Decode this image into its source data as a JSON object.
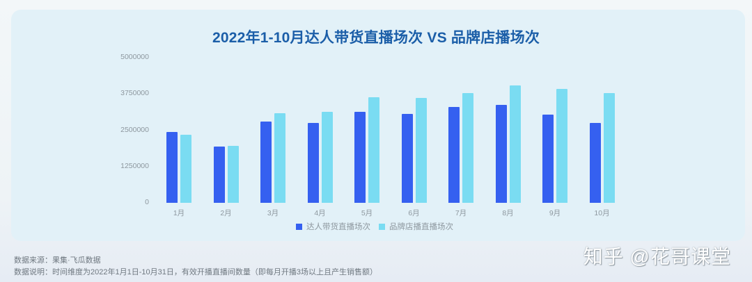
{
  "chart_data": {
    "type": "bar",
    "title": "2022年1-10月达人带货直播场次 VS 品牌店播场次",
    "xlabel": "",
    "ylabel": "",
    "ylim": [
      0,
      5000000
    ],
    "yticks": [
      "5000000",
      "3750000",
      "2500000",
      "1250000",
      "0"
    ],
    "categories": [
      "1月",
      "2月",
      "3月",
      "4月",
      "5月",
      "6月",
      "7月",
      "8月",
      "9月",
      "10月"
    ],
    "series": [
      {
        "name": "达人带货直播场次",
        "color": "#3560f0",
        "values": [
          2440000,
          1940000,
          2800000,
          2750000,
          3130000,
          3060000,
          3300000,
          3370000,
          3040000,
          2750000
        ]
      },
      {
        "name": "品牌店播直播场次",
        "color": "#7adcf2",
        "values": [
          2340000,
          1960000,
          3090000,
          3130000,
          3640000,
          3610000,
          3780000,
          4040000,
          3920000,
          3780000
        ]
      }
    ],
    "grid": false,
    "legend_position": "bottom"
  },
  "footer": {
    "source": "数据来源：果集·飞瓜数据",
    "note": "数据说明：时间维度为2022年1月1日-10月31日，有效开播直播间数量（即每月开播3场以上且产生销售额）"
  },
  "watermark": "知乎 @花哥课堂"
}
